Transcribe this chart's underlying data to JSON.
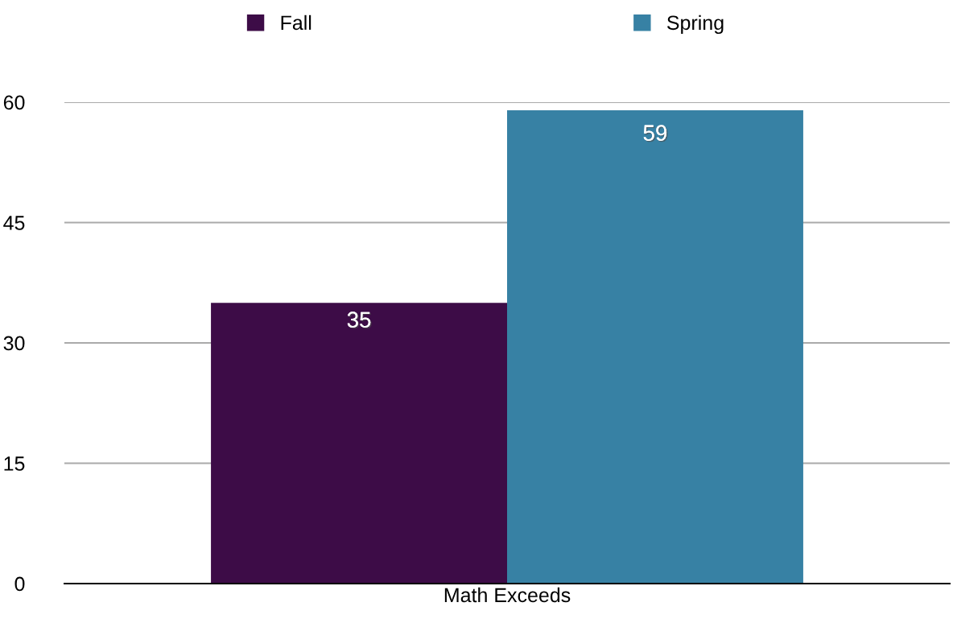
{
  "chart_data": {
    "type": "bar",
    "categories": [
      "Math Exceeds"
    ],
    "series": [
      {
        "name": "Fall",
        "color": "#3d0c47",
        "values": [
          35
        ]
      },
      {
        "name": "Spring",
        "color": "#3781a4",
        "values": [
          59
        ]
      }
    ],
    "ylim": [
      0,
      60
    ],
    "yticks": [
      0,
      15,
      30,
      45,
      60
    ],
    "grid": "y",
    "legend": "top",
    "data_labels": true
  }
}
